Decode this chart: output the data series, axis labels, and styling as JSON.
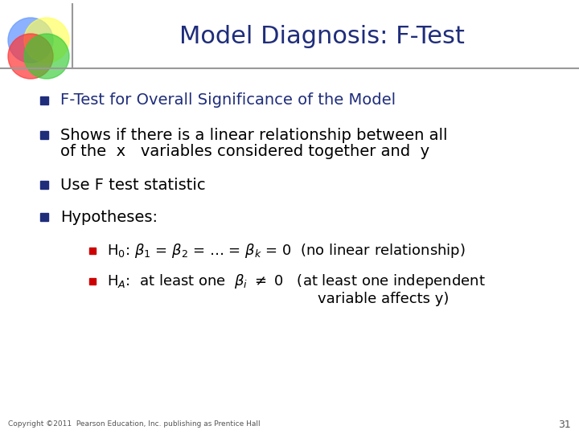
{
  "title": "Model Diagnosis: F-Test",
  "title_color": "#1F2D7B",
  "title_fontsize": 22,
  "background_color": "#FFFFFF",
  "bullet_color": "#1F2D7B",
  "sub_bullet_color": "#CC0000",
  "text_color": "#000000",
  "line_color": "#888888",
  "copyright_text": "Copyright ©2011  Pearson Education, Inc. publishing as Prentice Hall",
  "page_number": "31",
  "bullet1_text": "F-Test for Overall Significance of the Model",
  "bullet1_color": "#1F2D7B",
  "bullet2_line1": "Shows if there is a linear relationship between all",
  "bullet2_line2": "of the  x   variables considered together and  y",
  "bullet3_text": "Use F test statistic",
  "bullet4_text": "Hypotheses:",
  "sub1_text": "H₀: β₁ = β₂ = … = βk = 0  (no linear relationship)",
  "sub2_line1": "H⁁:  at least one  βi ≠ 0   (at least one independent",
  "sub2_line2": "variable affects y)",
  "main_fontsize": 14,
  "sub_fontsize": 13
}
